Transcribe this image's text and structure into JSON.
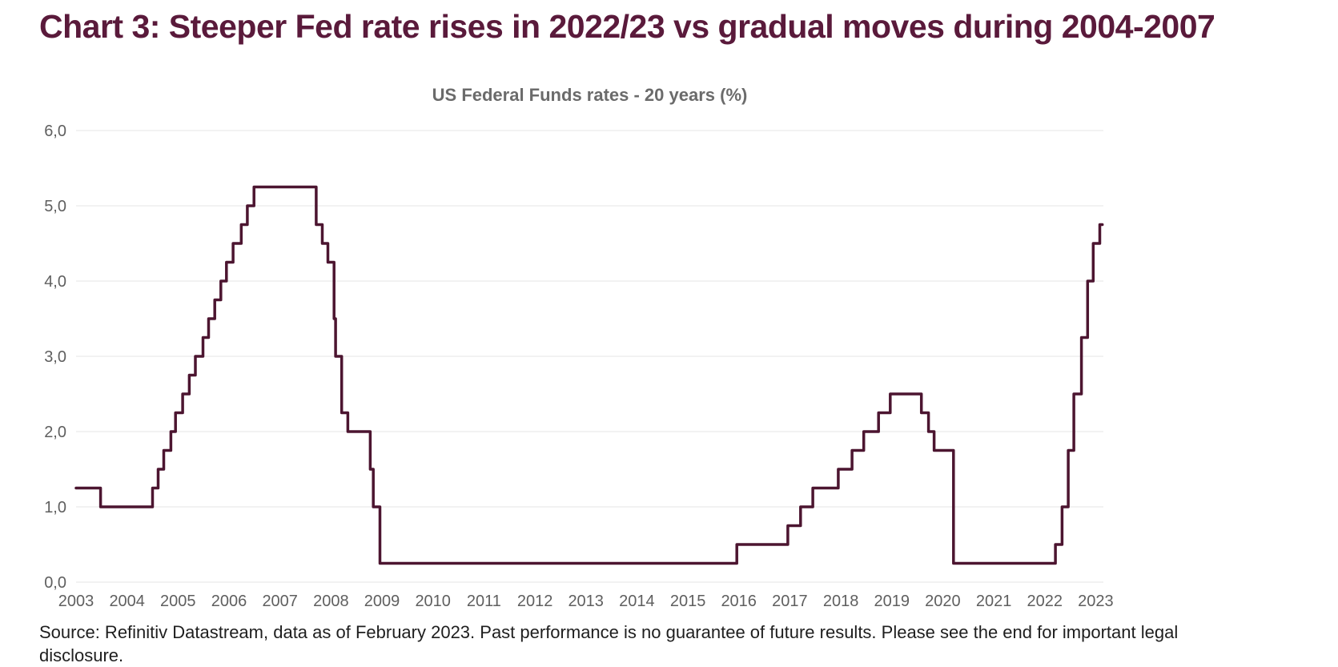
{
  "header": {
    "title": "Chart 3: Steeper Fed rate rises in 2022/23 vs gradual moves during 2004-2007"
  },
  "footer": {
    "source_text": "Source: Refinitiv Datastream, data as of February 2023. Past performance is no guarantee of future results. Please see the end for important legal disclosure."
  },
  "colors": {
    "title": "#5A1A3B",
    "line": "#4C1530",
    "subtitle": "#6B6B6B",
    "axis_label": "#5F5F5F",
    "gridline": "#E4E4E4",
    "source": "#1E1E1E",
    "background": "#FFFFFF"
  },
  "chart_data": {
    "type": "line",
    "step": true,
    "title": "US Federal Funds rates - 20 years (%)",
    "xlabel": "",
    "ylabel": "",
    "xlim": [
      2003,
      2023.15
    ],
    "ylim": [
      0,
      6
    ],
    "grid": "horizontal",
    "legend": "none",
    "x_ticks": [
      {
        "value": 2003,
        "label": "2003"
      },
      {
        "value": 2004,
        "label": "2004"
      },
      {
        "value": 2005,
        "label": "2005"
      },
      {
        "value": 2006,
        "label": "2006"
      },
      {
        "value": 2007,
        "label": "2007"
      },
      {
        "value": 2008,
        "label": "2008"
      },
      {
        "value": 2009,
        "label": "2009"
      },
      {
        "value": 2010,
        "label": "2010"
      },
      {
        "value": 2011,
        "label": "2011"
      },
      {
        "value": 2012,
        "label": "2012"
      },
      {
        "value": 2013,
        "label": "2013"
      },
      {
        "value": 2014,
        "label": "2014"
      },
      {
        "value": 2015,
        "label": "2015"
      },
      {
        "value": 2016,
        "label": "2016"
      },
      {
        "value": 2017,
        "label": "2017"
      },
      {
        "value": 2018,
        "label": "2018"
      },
      {
        "value": 2019,
        "label": "2019"
      },
      {
        "value": 2020,
        "label": "2020"
      },
      {
        "value": 2021,
        "label": "2021"
      },
      {
        "value": 2022,
        "label": "2022"
      },
      {
        "value": 2023,
        "label": "2023"
      }
    ],
    "y_ticks": [
      {
        "value": 0,
        "label": "0,0"
      },
      {
        "value": 1,
        "label": "1,0"
      },
      {
        "value": 2,
        "label": "2,0"
      },
      {
        "value": 3,
        "label": "3,0"
      },
      {
        "value": 4,
        "label": "4,0"
      },
      {
        "value": 5,
        "label": "5,0"
      },
      {
        "value": 6,
        "label": "6,0"
      }
    ],
    "series": [
      {
        "name": "US Federal Funds rate (%)",
        "color": "#4C1530",
        "points": [
          [
            2003.0,
            1.25
          ],
          [
            2003.48,
            1.0
          ],
          [
            2004.5,
            1.25
          ],
          [
            2004.61,
            1.5
          ],
          [
            2004.72,
            1.75
          ],
          [
            2004.86,
            2.0
          ],
          [
            2004.95,
            2.25
          ],
          [
            2005.09,
            2.5
          ],
          [
            2005.22,
            2.75
          ],
          [
            2005.34,
            3.0
          ],
          [
            2005.49,
            3.25
          ],
          [
            2005.6,
            3.5
          ],
          [
            2005.72,
            3.75
          ],
          [
            2005.84,
            4.0
          ],
          [
            2005.95,
            4.25
          ],
          [
            2006.08,
            4.5
          ],
          [
            2006.24,
            4.75
          ],
          [
            2006.36,
            5.0
          ],
          [
            2006.49,
            5.25
          ],
          [
            2007.71,
            4.75
          ],
          [
            2007.83,
            4.5
          ],
          [
            2007.94,
            4.25
          ],
          [
            2008.06,
            3.5
          ],
          [
            2008.09,
            3.0
          ],
          [
            2008.21,
            2.25
          ],
          [
            2008.33,
            2.0
          ],
          [
            2008.77,
            1.5
          ],
          [
            2008.83,
            1.0
          ],
          [
            2008.96,
            0.25
          ],
          [
            2015.96,
            0.5
          ],
          [
            2016.96,
            0.75
          ],
          [
            2017.21,
            1.0
          ],
          [
            2017.45,
            1.25
          ],
          [
            2017.95,
            1.5
          ],
          [
            2018.22,
            1.75
          ],
          [
            2018.45,
            2.0
          ],
          [
            2018.74,
            2.25
          ],
          [
            2018.97,
            2.5
          ],
          [
            2019.58,
            2.25
          ],
          [
            2019.72,
            2.0
          ],
          [
            2019.83,
            1.75
          ],
          [
            2020.21,
            0.25
          ],
          [
            2022.21,
            0.5
          ],
          [
            2022.34,
            1.0
          ],
          [
            2022.46,
            1.75
          ],
          [
            2022.57,
            2.5
          ],
          [
            2022.72,
            3.25
          ],
          [
            2022.84,
            4.0
          ],
          [
            2022.95,
            4.5
          ],
          [
            2023.08,
            4.75
          ],
          [
            2023.13,
            4.75
          ]
        ]
      }
    ]
  }
}
